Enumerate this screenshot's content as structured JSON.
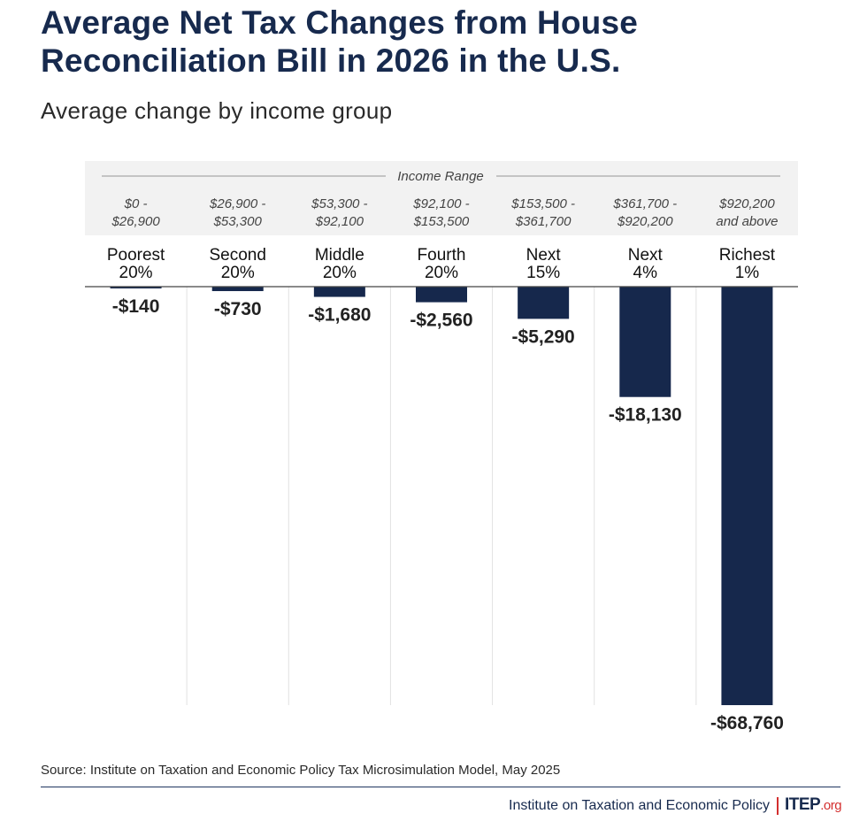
{
  "header": {
    "title": "Average Net Tax Changes from House Reconciliation Bill in 2026 in the U.S.",
    "subtitle": "Average change by income group"
  },
  "footer": {
    "source": "Source: Institute on Taxation and Economic Policy Tax Microsimulation Model, May 2025",
    "organization": "Institute on Taxation and Economic Policy",
    "logo_main": "ITEP",
    "logo_suffix": ".org"
  },
  "colors": {
    "bar": "#16284c",
    "title": "#172a4e",
    "header_band": "#f2f2f2",
    "accent_red": "#d32f2f"
  },
  "chart_data": {
    "type": "bar",
    "title": "Average Net Tax Changes from House Reconciliation Bill in 2026 in the U.S.",
    "subtitle": "Average change by income group",
    "header_label": "Income Range",
    "categories": [
      [
        "Poorest",
        "20%"
      ],
      [
        "Second",
        "20%"
      ],
      [
        "Middle",
        "20%"
      ],
      [
        "Fourth",
        "20%"
      ],
      [
        "Next",
        "15%"
      ],
      [
        "Next",
        "4%"
      ],
      [
        "Richest",
        "1%"
      ]
    ],
    "income_ranges": [
      [
        "$0 -",
        "$26,900"
      ],
      [
        "$26,900 -",
        "$53,300"
      ],
      [
        "$53,300 -",
        "$92,100"
      ],
      [
        "$92,100 -",
        "$153,500"
      ],
      [
        "$153,500 -",
        "$361,700"
      ],
      [
        "$361,700 -",
        "$920,200"
      ],
      [
        "$920,200",
        "and above"
      ]
    ],
    "values": [
      -140,
      -730,
      -1680,
      -2560,
      -5290,
      -18130,
      -68760
    ],
    "value_labels": [
      "-$140",
      "-$730",
      "-$1,680",
      "-$2,560",
      "-$5,290",
      "-$18,130",
      "-$68,760"
    ],
    "ylim": [
      -68760,
      0
    ],
    "grid": "vertical separators",
    "legend": "none"
  }
}
